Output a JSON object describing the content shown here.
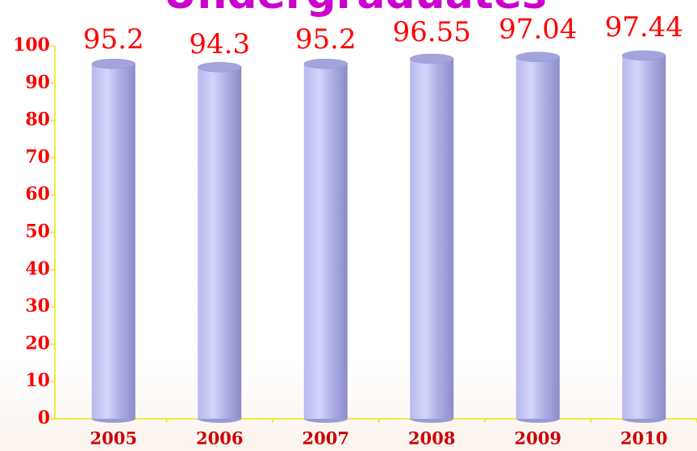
{
  "chart_data": {
    "type": "bar",
    "title": "Undergraduates",
    "categories": [
      "2005",
      "2006",
      "2007",
      "2008",
      "2009",
      "2010"
    ],
    "values": [
      95.2,
      94.3,
      95.2,
      96.55,
      97.04,
      97.44
    ],
    "color": "#b8b8ee",
    "ylim": [
      0,
      100
    ],
    "yticks": [
      0,
      10,
      20,
      30,
      40,
      50,
      60,
      70,
      80,
      90,
      100
    ],
    "grid": false
  }
}
